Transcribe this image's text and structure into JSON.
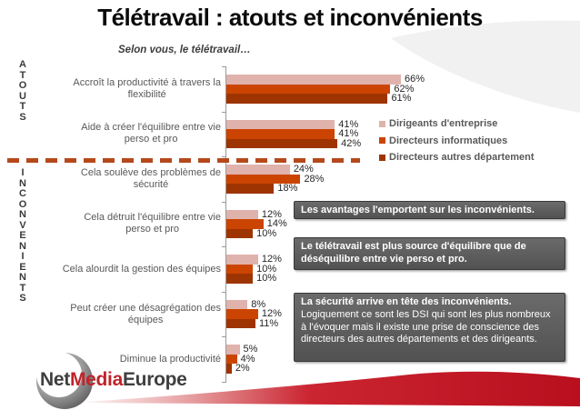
{
  "slide": {
    "title": "Télétravail : atouts et inconvénients",
    "subtitle": "Selon vous, le télétravail…"
  },
  "sections": {
    "atouts_label": "ATOUTS",
    "inconvenients_label": "INCONVENIENTS"
  },
  "chart_data": {
    "type": "bar",
    "orientation": "horizontal",
    "unit": "%",
    "xlim": [
      0,
      70
    ],
    "grid": false,
    "value_labels": true,
    "legend_position": "right",
    "categories": [
      "Accroît la productivité à travers la\nflexibilité",
      "Aide à créer l'équilibre entre vie\nperso et pro",
      "Cela soulève des problèmes de\nsécurité",
      "Cela détruit l'équilibre entre vie\nperso et pro",
      "Cela alourdit la gestion des équipes",
      "Peut créer une désagrégation des\néquipes",
      "Diminue la productivité"
    ],
    "category_sections": [
      "atouts",
      "atouts",
      "inconvenients",
      "inconvenients",
      "inconvenients",
      "inconvenients",
      "inconvenients"
    ],
    "series": [
      {
        "name": "Dirigeants d'entreprise",
        "color": "#e0b2ac",
        "values": [
          66,
          41,
          24,
          12,
          12,
          8,
          5
        ]
      },
      {
        "name": "Directeurs informatiques",
        "color": "#cc4402",
        "values": [
          62,
          41,
          28,
          14,
          10,
          12,
          4
        ]
      },
      {
        "name": "Directeurs autres département",
        "color": "#9e3402",
        "values": [
          61,
          42,
          18,
          10,
          10,
          11,
          2
        ]
      }
    ]
  },
  "annotations": [
    {
      "bold": "Les avantages l'emportent sur les inconvénients.",
      "rest": ""
    },
    {
      "bold": "Le télétravail est plus source d'équilibre que de déséquilibre entre vie perso et pro.",
      "rest": ""
    },
    {
      "bold": "La sécurité arrive en tête des inconvénients.",
      "rest": "Logiquement ce sont les DSI qui sont les plus nombreux à l'évoquer mais il existe une prise de conscience des directeurs des autres départements et des dirigeants."
    }
  ],
  "logo": {
    "net": "Net",
    "media": "Media",
    "europe": "Europe"
  },
  "colors": {
    "divider": "#b5491c",
    "annotation_bg": "#5c5c5c",
    "axis": "#9a9a9a",
    "swoosh_gray": "#f1f1f2",
    "swoosh_red": "#b90f1e",
    "logo_red": "#c0232a"
  }
}
